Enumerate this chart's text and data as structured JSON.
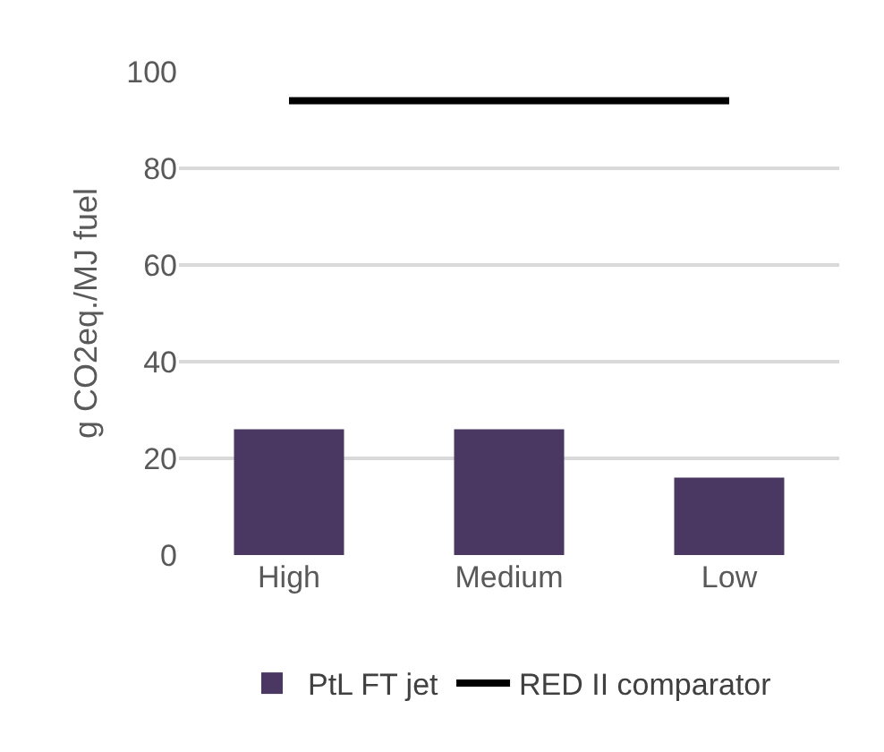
{
  "chart_data": {
    "type": "bar",
    "ylabel": "g CO2eq./MJ fuel",
    "categories": [
      "High",
      "Medium",
      "Low"
    ],
    "series": [
      {
        "name": "PtL FT jet",
        "color": "#4a3862",
        "values": [
          26,
          26,
          16
        ]
      },
      {
        "name": "RED II comparator",
        "type": "line",
        "color": "#000000",
        "values": [
          94,
          94,
          94
        ]
      }
    ],
    "ylim": [
      0,
      100
    ],
    "yticks": [
      0,
      20,
      40,
      60,
      80,
      100
    ],
    "grid": "y",
    "legend": "bottom",
    "marker": "none",
    "line_style": "solid"
  }
}
